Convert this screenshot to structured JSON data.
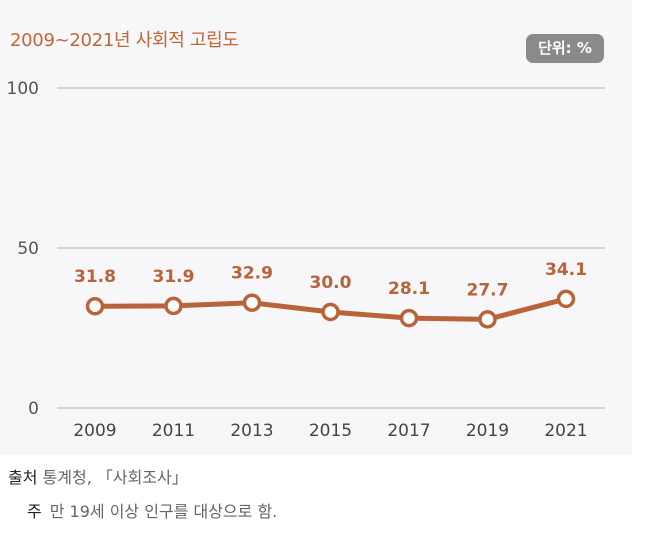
{
  "header": {
    "title": "2009~2021년 사회적 고립도",
    "unit_badge": "단위: %"
  },
  "chart_data": {
    "type": "line",
    "title": "2009~2021년 사회적 고립도",
    "categories": [
      "2009",
      "2011",
      "2013",
      "2015",
      "2017",
      "2019",
      "2021"
    ],
    "series": [
      {
        "values": [
          31.8,
          31.9,
          32.9,
          30.0,
          28.1,
          27.7,
          34.1
        ]
      }
    ],
    "data_labels": [
      "31.8",
      "31.9",
      "32.9",
      "30.0",
      "28.1",
      "27.7",
      "34.1"
    ],
    "yticks": [
      "0",
      "50",
      "100"
    ],
    "ylim": [
      0,
      100
    ],
    "xlabel": "",
    "ylabel": "",
    "grid": "horizontal",
    "colors": {
      "line": "#b8633a",
      "title": "#c0673a",
      "badge": "#8a8a8a"
    }
  },
  "footer": {
    "source_head": "출처",
    "source_text": "통계청, 「사회조사」",
    "note_head": "주",
    "note_text": "만 19세 이상 인구를 대상으로 함."
  }
}
